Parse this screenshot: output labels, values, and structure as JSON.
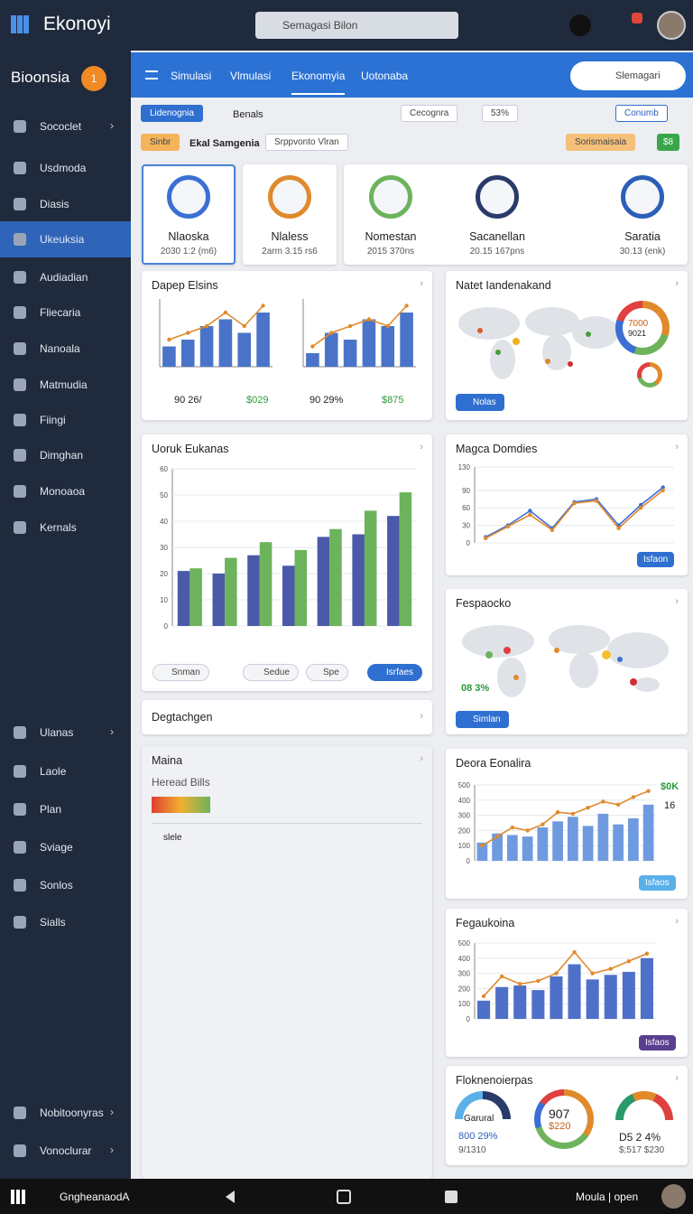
{
  "topbar": {
    "app": "Ekonoyi",
    "search": "Semagasi Bilon"
  },
  "sidebar": {
    "title": "Bioonsia",
    "badge": "1",
    "items": [
      "Sococlet",
      "Usdmoda",
      "Diasis",
      "Ukeuksia",
      "Audiadian",
      "Fliecaria",
      "Nanoala",
      "Matmudia",
      "Fiingi",
      "Dimghan",
      "Monoaoa",
      "Kernals"
    ],
    "lower": [
      "Ulanas",
      "Laole",
      "Plan",
      "Sviage",
      "Sonlos",
      "Sialls"
    ],
    "footer": [
      "Nobitoonyras",
      "Vonoclurar"
    ]
  },
  "header": {
    "tabs": [
      "Simulasi",
      "Vlmulasi",
      "Ekonomyia",
      "Uotonaba"
    ],
    "button": "Slemagari"
  },
  "toolbar": {
    "row1": [
      "Lidenognia",
      "Benals",
      "Cecognra",
      "53%",
      "Conumb"
    ],
    "row2": [
      "Sinbr",
      "Ekal Samgenia",
      "Srppvonto Vlran",
      "Sorismaisaia",
      "$8"
    ]
  },
  "cards": [
    {
      "title": "Nlaoska",
      "sub": "2030 1:2 (m6)"
    },
    {
      "title": "Nlaless",
      "sub": "2arm 3.15 rs6"
    },
    {
      "title": "Nomestan",
      "sub": "2015 370ns"
    },
    {
      "title": "Sacanellan",
      "sub": "20.15 167pns"
    },
    {
      "title": "Saratia",
      "sub": "30.13 (enk)"
    }
  ],
  "panels": {
    "dapep": {
      "title": "Dapep Elsins",
      "stats": [
        "90 26/",
        "$029",
        "90 29%",
        "$875"
      ]
    },
    "natet": {
      "title": "Natet Iandenakand",
      "donut": [
        "7000",
        "9021"
      ],
      "button": "Nolas"
    },
    "uoruk": {
      "title": "Uoruk Eukanas",
      "buttons": [
        "Snman",
        "Sedue",
        "Spe",
        "Isrfaes"
      ]
    },
    "magca": {
      "title": "Magca Domdies",
      "button": "Isfaon"
    },
    "fesp": {
      "title": "Fespaocko",
      "stat": "08 3%",
      "button": "Simlan"
    },
    "degt": {
      "title": "Degtachgen"
    },
    "maina": {
      "title": "Maina",
      "subtitle": "Heread Bills",
      "link": "slele"
    },
    "deora": {
      "title": "Deora Eonalira",
      "stats": [
        "$0K",
        "16"
      ],
      "button": "Isfaos"
    },
    "fega": {
      "title": "Fegaukoina",
      "button": "Isfaos"
    },
    "flok": {
      "title": "Floknenoierpas",
      "gauges": [
        {
          "label": "Garural",
          "value": "800 29%",
          "sub": "9/1310"
        },
        {
          "value": "907",
          "sub": "$220"
        },
        {
          "value": "D5 2 4%",
          "sub": "$;517 $230"
        }
      ]
    }
  },
  "bottombar": {
    "link": "GngheanaodA",
    "user": "Moula | open"
  },
  "chart_data": [
    {
      "type": "combo",
      "ylim": [
        0,
        10
      ],
      "series": [
        {
          "type": "bar",
          "color": "#4a74c9",
          "values": [
            3,
            4,
            6,
            7,
            5,
            8
          ]
        },
        {
          "type": "line",
          "color": "#e08a2c",
          "values": [
            4,
            5,
            6,
            8,
            6,
            9
          ]
        }
      ]
    },
    {
      "type": "combo",
      "ylim": [
        0,
        10
      ],
      "series": [
        {
          "type": "bar",
          "color": "#4a74c9",
          "values": [
            2,
            5,
            4,
            7,
            6,
            8
          ]
        },
        {
          "type": "line",
          "color": "#e08a2c",
          "values": [
            3,
            5,
            6,
            7,
            6,
            9
          ]
        }
      ]
    },
    {
      "type": "bar",
      "ylim": [
        0,
        60
      ],
      "yticks": [
        0,
        10,
        20,
        30,
        40,
        50,
        60
      ],
      "categories": [
        null,
        null,
        null,
        null,
        null,
        null,
        null
      ],
      "series": [
        {
          "type": "bar",
          "color": "#4a5aa8",
          "values": [
            21,
            20,
            27,
            23,
            34,
            35,
            42
          ]
        },
        {
          "type": "bar",
          "color": "#6db35c",
          "values": [
            22,
            26,
            32,
            29,
            37,
            44,
            51
          ]
        }
      ]
    },
    {
      "type": "line",
      "ylim": [
        0,
        130
      ],
      "yticks": [
        0,
        30,
        60,
        90,
        130
      ],
      "categories": [
        null,
        null,
        null,
        null,
        null,
        null,
        null,
        null,
        null
      ],
      "series": [
        {
          "type": "line",
          "color": "#3b6fd4",
          "values": [
            10,
            30,
            55,
            25,
            70,
            75,
            30,
            65,
            95
          ]
        },
        {
          "type": "line",
          "color": "#e08a2c",
          "values": [
            8,
            28,
            48,
            22,
            68,
            72,
            25,
            60,
            90
          ]
        }
      ]
    },
    {
      "type": "combo",
      "ylim": [
        0,
        500
      ],
      "yticks": [
        0,
        100,
        200,
        300,
        400,
        500
      ],
      "categories": [
        null,
        null,
        null,
        null,
        null,
        null,
        null,
        null,
        null,
        null,
        null,
        null
      ],
      "series": [
        {
          "type": "bar",
          "color": "#6f9ae0",
          "values": [
            120,
            180,
            170,
            160,
            220,
            260,
            290,
            230,
            310,
            240,
            280,
            370
          ]
        },
        {
          "type": "line",
          "color": "#e08a2c",
          "values": [
            100,
            160,
            220,
            200,
            240,
            320,
            310,
            350,
            390,
            370,
            420,
            460
          ]
        }
      ]
    },
    {
      "type": "combo",
      "ylim": [
        0,
        500
      ],
      "yticks": [
        0,
        100,
        200,
        300,
        400,
        500
      ],
      "categories": [
        null,
        null,
        null,
        null,
        null,
        null,
        null,
        null,
        null,
        null
      ],
      "series": [
        {
          "type": "bar",
          "color": "#4f70c8",
          "values": [
            120,
            210,
            220,
            190,
            280,
            360,
            260,
            290,
            310,
            400
          ]
        },
        {
          "type": "line",
          "color": "#e08a2c",
          "values": [
            150,
            280,
            230,
            250,
            300,
            440,
            300,
            330,
            380,
            430
          ]
        }
      ]
    }
  ]
}
